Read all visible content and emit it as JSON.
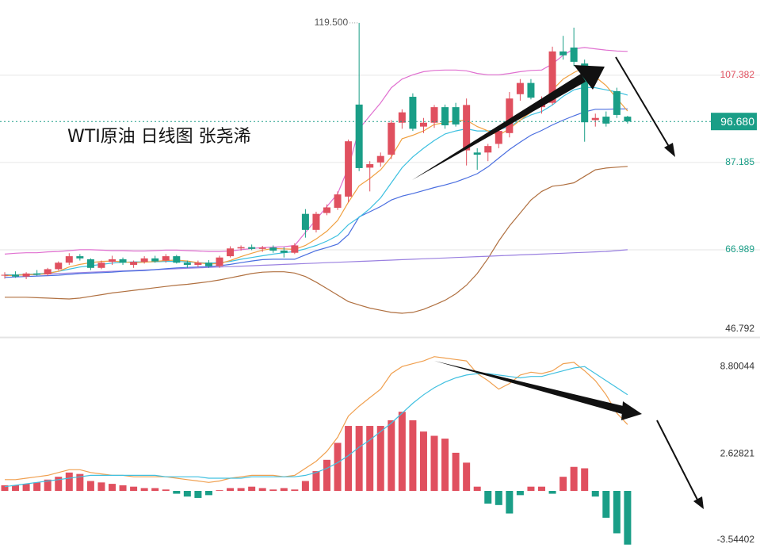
{
  "chart_data": [
    {
      "type": "candlestick",
      "title": "WTI原油 日线图 张尧浠",
      "open": [
        61.0,
        61.2,
        60.8,
        61.5,
        61.3,
        62.5,
        64.0,
        65.5,
        64.8,
        62.8,
        64.2,
        64.8,
        63.5,
        64.2,
        65.0,
        64.5,
        65.5,
        64.0,
        63.5,
        64.0,
        63.2,
        65.5,
        67.3,
        67.6,
        67.2,
        67.5,
        66.8,
        66.3,
        75.3,
        71.6,
        75.5,
        76.7,
        79.3,
        100.6,
        86.0,
        87.2,
        89.0,
        96.4,
        102.4,
        95.5,
        96.4,
        100.0,
        100.0,
        90.0,
        89.5,
        89.5,
        91.5,
        94.0,
        103.0,
        105.6,
        100.0,
        101.0,
        112.9,
        113.8,
        110.1,
        97.0,
        97.8,
        103.7,
        97.8
      ],
      "high": [
        61.8,
        62.0,
        61.8,
        62.3,
        62.8,
        64.3,
        66.2,
        66.0,
        65.0,
        64.5,
        65.6,
        65.2,
        64.5,
        65.5,
        65.6,
        66.0,
        65.8,
        64.5,
        64.5,
        64.6,
        65.6,
        67.8,
        68.0,
        68.2,
        67.9,
        68.0,
        67.6,
        68.5,
        76.4,
        75.8,
        77.5,
        80.5,
        92.5,
        119.5,
        87.5,
        89.5,
        97.0,
        99.5,
        103.2,
        97.5,
        100.5,
        100.6,
        101.0,
        102.0,
        90.5,
        91.5,
        95.0,
        103.5,
        106.5,
        106.5,
        102.5,
        114.0,
        116.5,
        118.4,
        111.0,
        98.5,
        99.0,
        104.5,
        98.0
      ],
      "low": [
        60.3,
        60.5,
        60.2,
        61.0,
        61.0,
        62.2,
        63.5,
        64.5,
        62.3,
        62.5,
        63.5,
        63.5,
        62.8,
        63.8,
        64.0,
        64.0,
        63.8,
        62.8,
        63.0,
        62.8,
        62.8,
        65.2,
        66.8,
        66.9,
        66.5,
        66.3,
        65.2,
        66.0,
        69.8,
        71.0,
        75.0,
        76.2,
        78.0,
        85.2,
        80.5,
        86.2,
        88.0,
        95.0,
        94.5,
        94.0,
        95.2,
        95.0,
        95.5,
        86.5,
        85.5,
        87.5,
        90.5,
        93.0,
        101.5,
        101.8,
        98.5,
        100.5,
        111.0,
        109.5,
        92.0,
        95.5,
        95.5,
        97.5,
        96.2
      ],
      "close": [
        61.2,
        60.8,
        61.5,
        61.2,
        62.5,
        64.0,
        65.5,
        65.0,
        62.8,
        64.0,
        64.8,
        64.0,
        64.2,
        65.0,
        64.3,
        65.5,
        64.0,
        63.5,
        64.0,
        63.2,
        65.2,
        67.3,
        67.6,
        67.2,
        67.5,
        66.8,
        66.3,
        68.0,
        71.6,
        75.3,
        76.8,
        79.8,
        92.1,
        85.9,
        86.8,
        88.7,
        96.4,
        98.8,
        95.0,
        96.4,
        100.0,
        95.8,
        96.0,
        100.5,
        89.0,
        91.0,
        94.5,
        102.0,
        105.6,
        102.2,
        101.5,
        112.9,
        112.0,
        110.5,
        96.5,
        97.5,
        96.2,
        98.2,
        96.68
      ],
      "up_color": "#e0505f",
      "down_color": "#1a9e87",
      "series": [
        {
          "color": "#e070d0",
          "values": [
            66.0,
            66.2,
            66.3,
            66.3,
            66.5,
            66.6,
            66.8,
            67.0,
            67.0,
            66.9,
            66.8,
            66.8,
            66.7,
            66.7,
            66.8,
            66.9,
            66.9,
            66.8,
            66.7,
            66.6,
            66.6,
            66.7,
            67.0,
            67.3,
            67.5,
            67.6,
            67.7,
            68.0,
            71.0,
            74.0,
            77.0,
            80.0,
            86.0,
            95.0,
            98.0,
            101.0,
            104.5,
            106.5,
            107.5,
            108.2,
            108.5,
            108.6,
            108.6,
            108.4,
            107.8,
            107.5,
            107.5,
            107.8,
            108.2,
            108.5,
            108.6,
            110.0,
            112.0,
            113.5,
            113.8,
            113.5,
            113.2,
            113.0,
            112.9
          ]
        },
        {
          "color": "#b07040",
          "values": [
            56.0,
            56.0,
            56.0,
            55.9,
            55.8,
            55.7,
            55.6,
            55.8,
            56.2,
            56.6,
            57.0,
            57.3,
            57.6,
            57.9,
            58.2,
            58.5,
            58.8,
            59.0,
            59.3,
            59.6,
            60.0,
            60.5,
            61.0,
            61.5,
            61.8,
            61.9,
            61.9,
            61.6,
            60.8,
            59.5,
            58.0,
            56.5,
            55.0,
            54.2,
            53.5,
            53.0,
            52.5,
            52.3,
            52.5,
            53.2,
            54.2,
            55.3,
            56.8,
            58.8,
            61.5,
            65.0,
            69.0,
            72.5,
            75.5,
            78.5,
            80.5,
            81.7,
            82.0,
            82.5,
            84.0,
            85.5,
            85.9,
            86.1,
            86.3
          ]
        },
        {
          "color": "#9a80e0",
          "values": [
            61.0,
            61.1,
            61.2,
            61.3,
            61.4,
            61.5,
            61.6,
            61.7,
            61.8,
            61.9,
            62.0,
            62.1,
            62.2,
            62.3,
            62.4,
            62.5,
            62.6,
            62.7,
            62.8,
            62.9,
            63.0,
            63.1,
            63.2,
            63.3,
            63.4,
            63.5,
            63.6,
            63.7,
            63.8,
            63.9,
            64.0,
            64.1,
            64.2,
            64.3,
            64.4,
            64.5,
            64.6,
            64.7,
            64.8,
            64.9,
            65.0,
            65.1,
            65.2,
            65.3,
            65.4,
            65.5,
            65.6,
            65.7,
            65.8,
            65.9,
            66.0,
            66.1,
            66.2,
            66.3,
            66.4,
            66.5,
            66.6,
            66.8,
            67.0
          ]
        },
        {
          "color": "#4a6ee0",
          "values": [
            60.6,
            60.7,
            60.8,
            60.9,
            61.0,
            61.1,
            61.3,
            61.5,
            61.6,
            61.7,
            61.8,
            62.0,
            62.1,
            62.2,
            62.4,
            62.6,
            62.8,
            62.9,
            63.0,
            63.1,
            63.3,
            63.6,
            64.0,
            64.4,
            64.7,
            64.8,
            64.8,
            64.8,
            65.8,
            66.8,
            67.5,
            68.3,
            70.5,
            74.6,
            75.8,
            77.0,
            78.5,
            79.4,
            80.0,
            80.7,
            81.4,
            82.0,
            82.7,
            83.6,
            84.6,
            86.2,
            88.2,
            90.2,
            91.9,
            93.5,
            94.6,
            95.9,
            97.0,
            98.0,
            98.9,
            99.5,
            99.5,
            99.6,
            99.6
          ]
        },
        {
          "color": "#3cc0e0",
          "values": [
            61.2,
            61.2,
            61.3,
            61.4,
            61.6,
            62.0,
            62.5,
            63.0,
            63.3,
            63.6,
            63.9,
            64.1,
            64.2,
            64.2,
            64.2,
            64.3,
            64.3,
            64.2,
            64.0,
            63.9,
            64.0,
            64.3,
            64.8,
            65.2,
            65.6,
            66.0,
            66.3,
            66.6,
            67.2,
            68.0,
            69.0,
            70.3,
            72.8,
            74.5,
            76.5,
            79.0,
            82.5,
            86.0,
            88.5,
            90.5,
            92.3,
            93.8,
            94.5,
            95.0,
            94.5,
            94.5,
            94.8,
            95.5,
            97.0,
            98.2,
            99.0,
            100.5,
            102.5,
            104.0,
            104.6,
            104.5,
            104.0,
            103.5,
            102.8
          ]
        },
        {
          "color": "#f0a040",
          "values": [
            61.0,
            61.1,
            61.2,
            61.3,
            61.5,
            62.0,
            63.0,
            63.6,
            64.0,
            64.3,
            64.4,
            64.2,
            64.0,
            64.1,
            64.3,
            64.5,
            64.6,
            64.4,
            64.0,
            63.7,
            63.8,
            64.5,
            65.4,
            66.2,
            66.9,
            67.3,
            67.2,
            67.1,
            68.0,
            69.5,
            71.3,
            73.8,
            78.0,
            81.8,
            83.5,
            85.5,
            88.5,
            92.7,
            93.5,
            94.5,
            96.0,
            96.4,
            96.8,
            97.0,
            95.5,
            94.5,
            93.5,
            95.0,
            97.0,
            98.8,
            101.0,
            104.0,
            106.5,
            108.0,
            109.2,
            107.0,
            105.0,
            102.0,
            99.1
          ]
        }
      ],
      "ylim": [
        46.792,
        124.8
      ],
      "yticks": [
        46.792,
        66.989,
        87.185,
        107.382
      ],
      "ytick_colors": [
        "#333333",
        "#1a9e87",
        "#1a9e87",
        "#e0505f"
      ],
      "grid": true,
      "last_price": {
        "value": 96.68,
        "label": "96.680"
      },
      "annotations": [
        {
          "value": 119.5,
          "label": "119.500"
        }
      ]
    },
    {
      "type": "macd",
      "values": [
        0.4,
        0.4,
        0.5,
        0.6,
        0.8,
        1.0,
        1.3,
        1.2,
        0.7,
        0.6,
        0.5,
        0.4,
        0.3,
        0.2,
        0.2,
        0.1,
        -0.2,
        -0.4,
        -0.5,
        -0.3,
        0.05,
        0.2,
        0.2,
        0.3,
        0.2,
        0.1,
        0.2,
        0.1,
        0.7,
        1.4,
        2.2,
        3.4,
        4.6,
        4.6,
        4.6,
        4.6,
        5.0,
        5.6,
        5.0,
        4.2,
        3.9,
        3.7,
        2.7,
        2.0,
        0.3,
        -0.9,
        -1.0,
        -1.6,
        -0.3,
        0.3,
        0.3,
        -0.2,
        1.0,
        1.7,
        1.6,
        -0.4,
        -1.9,
        -3.0,
        -3.8
      ],
      "up_color": "#e0505f",
      "down_color": "#1a9e87",
      "series": [
        {
          "color": "#f0a050",
          "values": [
            0.8,
            0.8,
            0.9,
            1.0,
            1.1,
            1.3,
            1.5,
            1.5,
            1.3,
            1.2,
            1.1,
            1.1,
            1.0,
            1.0,
            1.0,
            1.0,
            0.9,
            0.8,
            0.7,
            0.6,
            0.7,
            0.9,
            1.0,
            1.1,
            1.1,
            1.1,
            1.0,
            1.1,
            1.6,
            2.1,
            2.8,
            3.8,
            5.3,
            6.0,
            6.6,
            7.2,
            8.3,
            8.8,
            9.0,
            9.2,
            9.5,
            9.4,
            9.3,
            9.2,
            8.3,
            7.8,
            7.2,
            7.6,
            8.2,
            8.4,
            8.3,
            8.5,
            9.0,
            9.1,
            8.5,
            7.8,
            6.8,
            5.5,
            4.7
          ]
        },
        {
          "color": "#40c0e0",
          "values": [
            0.3,
            0.4,
            0.5,
            0.6,
            0.7,
            0.8,
            0.9,
            1.0,
            1.1,
            1.1,
            1.1,
            1.1,
            1.1,
            1.1,
            1.1,
            1.0,
            1.0,
            1.0,
            1.0,
            0.9,
            0.9,
            0.9,
            0.9,
            1.0,
            1.0,
            1.0,
            1.0,
            1.0,
            1.1,
            1.3,
            1.6,
            2.0,
            2.5,
            3.1,
            3.6,
            4.2,
            4.8,
            5.5,
            6.2,
            6.8,
            7.3,
            7.7,
            8.0,
            8.2,
            8.3,
            8.3,
            8.2,
            8.1,
            8.0,
            8.1,
            8.1,
            8.3,
            8.5,
            8.7,
            8.8,
            8.3,
            7.8,
            7.3,
            6.8
          ]
        }
      ],
      "ylim": [
        -4.04,
        10.72
      ],
      "yticks": [
        -3.54402,
        2.62821,
        8.80044
      ]
    }
  ]
}
